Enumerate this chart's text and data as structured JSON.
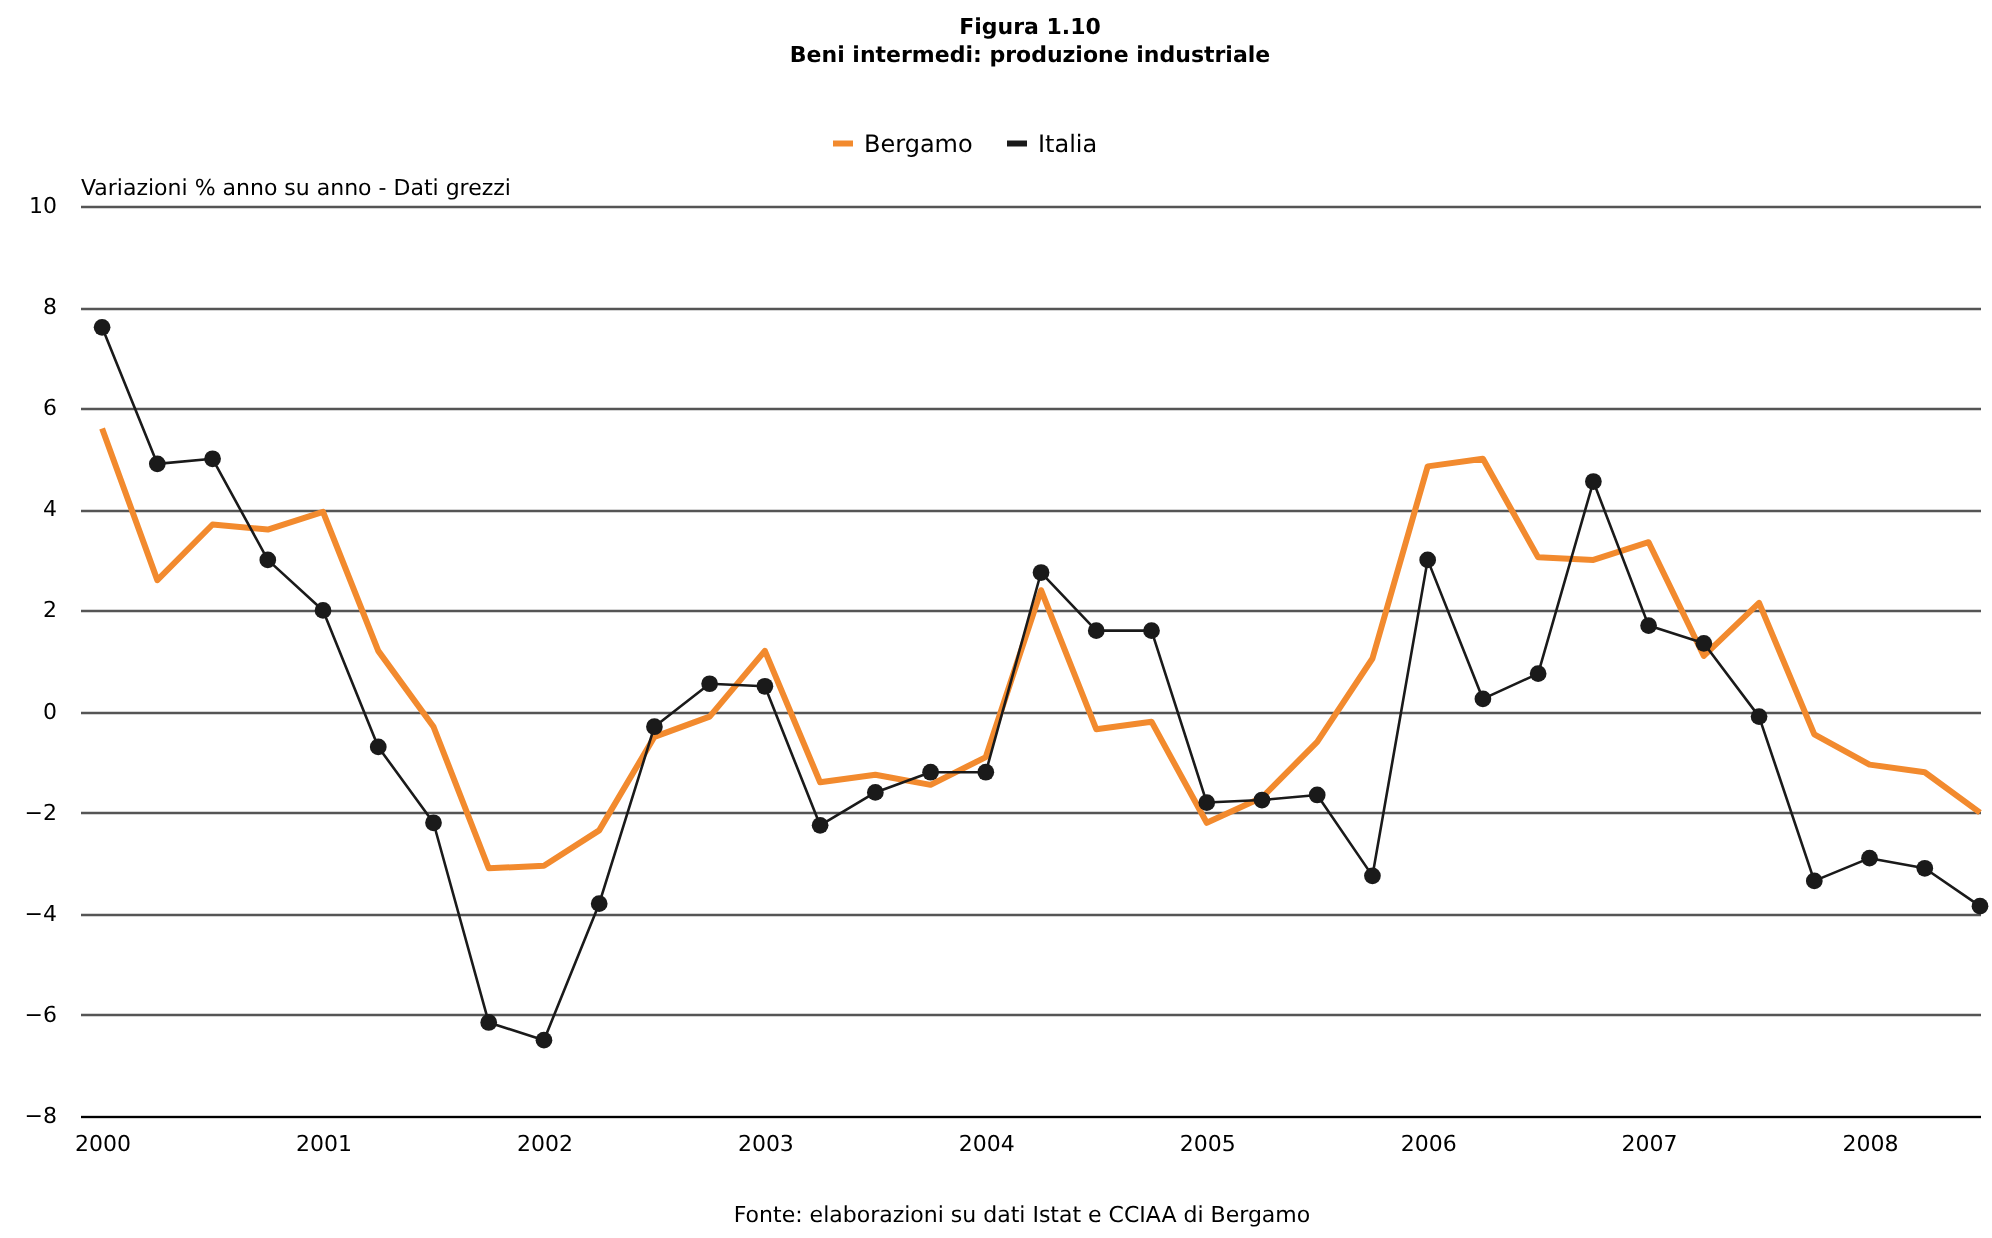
{
  "chart_data": {
    "type": "line",
    "title": "Figura 1.10",
    "subtitle": "Beni intermedi: produzione industriale",
    "ylabel": "Variazioni % anno su anno - Dati grezzi",
    "annotations": [
      "Fonte: elaborazioni su dati Istat e CCIAA di Bergamo"
    ],
    "x": [
      2000,
      2000.25,
      2000.5,
      2000.75,
      2001,
      2001.25,
      2001.5,
      2001.75,
      2002,
      2002.25,
      2002.5,
      2002.75,
      2003,
      2003.25,
      2003.5,
      2003.75,
      2004,
      2004.25,
      2004.5,
      2004.75,
      2005,
      2005.25,
      2005.5,
      2005.75,
      2006,
      2006.25,
      2006.5,
      2006.75,
      2007,
      2007.25,
      2007.5,
      2007.75,
      2008,
      2008.25,
      2008.5
    ],
    "series": [
      {
        "name": "Bergamo",
        "color": "#f28a2e",
        "marker": "none",
        "values": [
          5.6,
          2.6,
          3.7,
          3.6,
          3.95,
          1.2,
          -0.3,
          -3.1,
          -3.05,
          -2.35,
          -0.5,
          -0.1,
          1.2,
          -1.4,
          -1.25,
          -1.45,
          -0.9,
          2.4,
          -0.35,
          -0.2,
          -2.2,
          -1.7,
          -0.6,
          1.05,
          4.85,
          5.0,
          3.05,
          3.0,
          3.35,
          1.1,
          2.15,
          -0.45,
          -1.05,
          -1.2,
          -2.0
        ]
      },
      {
        "name": "Italia",
        "color": "#1a1a1a",
        "marker": "circle",
        "values": [
          7.6,
          4.9,
          5.0,
          3.0,
          2.0,
          -0.7,
          -2.2,
          -6.15,
          -6.5,
          -3.8,
          -0.3,
          0.55,
          0.5,
          -2.25,
          -1.6,
          -1.2,
          -1.2,
          2.75,
          1.6,
          1.6,
          -1.8,
          -1.75,
          -1.65,
          -3.25,
          3.0,
          0.25,
          0.75,
          4.55,
          1.7,
          1.35,
          -0.1,
          -3.35,
          -2.9,
          -3.1,
          -3.85
        ]
      }
    ],
    "xlim": [
      1999.9,
      2008.5
    ],
    "xticks": [
      2000,
      2001,
      2002,
      2003,
      2004,
      2005,
      2006,
      2007,
      2008
    ],
    "ylim": [
      -8,
      10
    ],
    "yticks": [
      -8,
      -6,
      -4,
      -2,
      0,
      2,
      4,
      6,
      8,
      10
    ],
    "grid": "y",
    "legend": "top"
  }
}
